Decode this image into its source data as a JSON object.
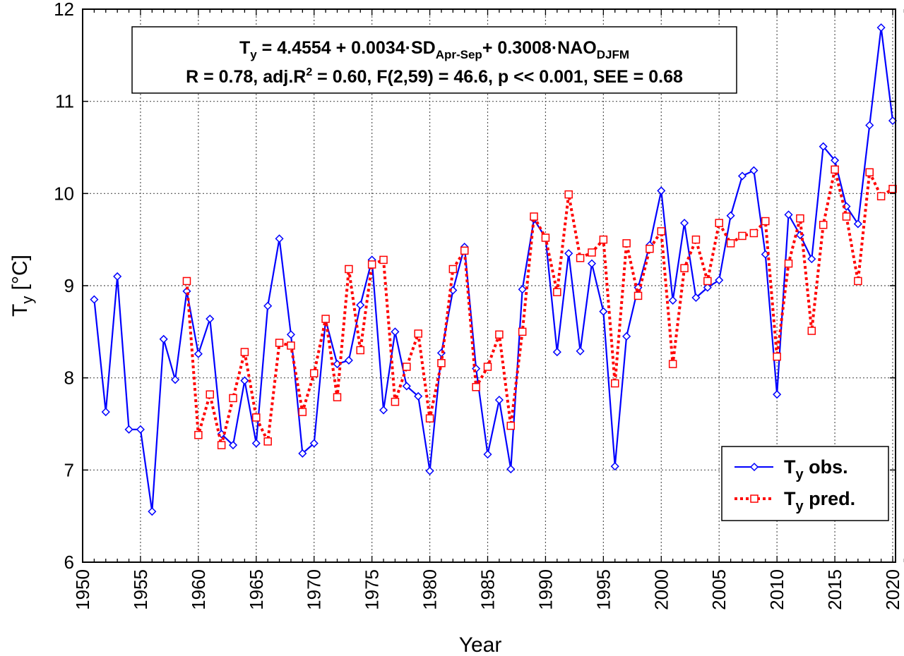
{
  "chart_data": {
    "type": "line",
    "xlabel": "Year",
    "ylabel": {
      "main": "T",
      "sub": "y",
      "rest": " [°C]"
    },
    "xlim": [
      1950,
      2021
    ],
    "ylim": [
      6,
      12
    ],
    "xticks": [
      "1950",
      "1955",
      "1960",
      "1965",
      "1970",
      "1975",
      "1980",
      "1985",
      "1990",
      "1995",
      "2000",
      "2005",
      "2010",
      "2015",
      "2020"
    ],
    "yticks": [
      "6",
      "7",
      "8",
      "9",
      "10",
      "11",
      "12"
    ],
    "grid": true,
    "legend_position": "bottom-right",
    "annotation": {
      "line1": [
        {
          "t": "T"
        },
        {
          "t": "y",
          "sub": true
        },
        {
          "t": " = 4.4554 + 0.0034·SD"
        },
        {
          "t": "Apr-Sep",
          "sub": true
        },
        {
          "t": "+ 0.3008·NAO"
        },
        {
          "t": "DJFM",
          "sub": true
        }
      ],
      "line2": [
        {
          "t": "R = 0.78, adj.R"
        },
        {
          "t": "2",
          "sup": true
        },
        {
          "t": " = 0.60, F(2,59) = 46.6, p << 0.001, SEE = 0.68"
        }
      ]
    },
    "series": [
      {
        "name": "T_y obs.",
        "label_main": "T",
        "label_sub": "y",
        "label_rest": " obs.",
        "color": "#0000ff",
        "style": "solid",
        "marker": "diamond",
        "x": [
          1951,
          1952,
          1953,
          1954,
          1955,
          1956,
          1957,
          1958,
          1959,
          1960,
          1961,
          1962,
          1963,
          1964,
          1965,
          1966,
          1967,
          1968,
          1969,
          1970,
          1971,
          1972,
          1973,
          1974,
          1975,
          1976,
          1977,
          1978,
          1979,
          1980,
          1981,
          1982,
          1983,
          1984,
          1985,
          1986,
          1987,
          1988,
          1989,
          1990,
          1991,
          1992,
          1993,
          1994,
          1995,
          1996,
          1997,
          1998,
          1999,
          2000,
          2001,
          2002,
          2003,
          2004,
          2005,
          2006,
          2007,
          2008,
          2009,
          2010,
          2011,
          2012,
          2013,
          2014,
          2015,
          2016,
          2017,
          2018,
          2019,
          2020
        ],
        "y": [
          8.85,
          7.63,
          9.1,
          7.44,
          7.44,
          6.55,
          8.42,
          7.98,
          8.94,
          8.26,
          8.64,
          7.39,
          7.27,
          7.97,
          7.29,
          8.78,
          9.51,
          8.47,
          7.18,
          7.29,
          8.63,
          8.15,
          8.19,
          8.79,
          9.28,
          7.65,
          8.5,
          7.91,
          7.8,
          6.99,
          8.27,
          8.95,
          9.42,
          8.1,
          7.17,
          7.76,
          7.01,
          8.96,
          9.72,
          9.52,
          8.28,
          9.35,
          8.29,
          9.24,
          8.72,
          7.04,
          8.45,
          8.98,
          9.44,
          10.03,
          8.84,
          9.68,
          8.87,
          8.98,
          9.06,
          9.76,
          10.19,
          10.25,
          9.34,
          7.82,
          9.77,
          9.55,
          9.29,
          10.51,
          10.36,
          9.86,
          9.67,
          10.74,
          11.8,
          10.79
        ]
      },
      {
        "name": "T_y pred.",
        "label_main": "T",
        "label_sub": "y",
        "label_rest": " pred.",
        "color": "#ff0000",
        "style": "dotted",
        "marker": "square",
        "x": [
          1959,
          1960,
          1961,
          1962,
          1963,
          1964,
          1965,
          1966,
          1967,
          1968,
          1969,
          1970,
          1971,
          1972,
          1973,
          1974,
          1975,
          1976,
          1977,
          1978,
          1979,
          1980,
          1981,
          1982,
          1983,
          1984,
          1985,
          1986,
          1987,
          1988,
          1989,
          1990,
          1991,
          1992,
          1993,
          1994,
          1995,
          1996,
          1997,
          1998,
          1999,
          2000,
          2001,
          2002,
          2003,
          2004,
          2005,
          2006,
          2007,
          2008,
          2009,
          2010,
          2011,
          2012,
          2013,
          2014,
          2015,
          2016,
          2017,
          2018,
          2019,
          2020
        ],
        "y": [
          9.05,
          7.38,
          7.82,
          7.27,
          7.78,
          8.28,
          7.57,
          7.31,
          8.38,
          8.35,
          7.63,
          8.05,
          8.64,
          7.79,
          9.18,
          8.3,
          9.23,
          9.28,
          7.74,
          8.12,
          8.48,
          7.56,
          8.16,
          9.18,
          9.38,
          7.9,
          8.12,
          8.47,
          7.48,
          8.5,
          9.75,
          9.52,
          8.93,
          9.99,
          9.3,
          9.36,
          9.5,
          7.94,
          9.46,
          8.89,
          9.4,
          9.59,
          8.15,
          9.19,
          9.5,
          9.05,
          9.68,
          9.46,
          9.54,
          9.57,
          9.7,
          8.23,
          9.24,
          9.73,
          8.51,
          9.66,
          10.26,
          9.75,
          9.05,
          10.23,
          9.97,
          10.05
        ]
      }
    ]
  }
}
